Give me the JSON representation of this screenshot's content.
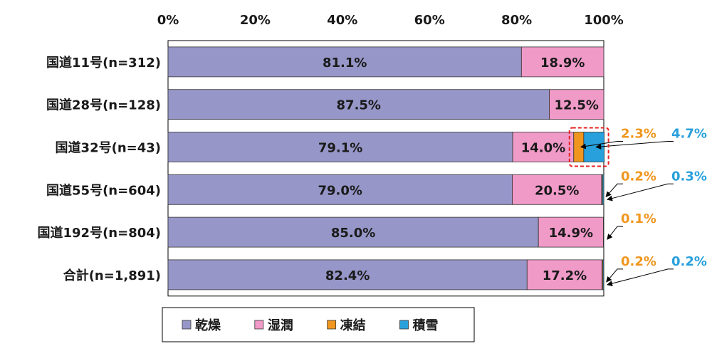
{
  "chart_data": {
    "type": "bar",
    "orientation": "horizontal",
    "stacked": true,
    "normalized": true,
    "x_ticks": [
      "0%",
      "20%",
      "40%",
      "60%",
      "80%",
      "100%"
    ],
    "xlim": [
      0,
      100
    ],
    "categories": [
      "国道11号(n=312)",
      "国道28号(n=128)",
      "国道32号(n=43)",
      "国道55号(n=604)",
      "国道192号(n=804)",
      "合計(n=1,891)"
    ],
    "series": [
      {
        "name": "乾燥",
        "color": "#9696c8",
        "values": [
          81.1,
          87.5,
          79.1,
          79.0,
          85.0,
          82.4
        ],
        "labels": [
          "81.1%",
          "87.5%",
          "79.1%",
          "79.0%",
          "85.0%",
          "82.4%"
        ]
      },
      {
        "name": "湿潤",
        "color": "#f09ac8",
        "values": [
          18.9,
          12.5,
          14.0,
          20.5,
          14.9,
          17.2
        ],
        "labels": [
          "18.9%",
          "12.5%",
          "14.0%",
          "20.5%",
          "14.9%",
          "17.2%"
        ]
      },
      {
        "name": "凍結",
        "color": "#f0961e",
        "values": [
          0,
          0,
          2.3,
          0.2,
          0.1,
          0.2
        ],
        "labels": [
          "",
          "",
          "2.3%",
          "0.2%",
          "0.1%",
          "0.2%"
        ]
      },
      {
        "name": "積雪",
        "color": "#28a0dc",
        "values": [
          0,
          0,
          4.7,
          0.3,
          0,
          0.2
        ],
        "labels": [
          "",
          "",
          "4.7%",
          "0.3%",
          "",
          "0.2%"
        ]
      }
    ],
    "legend_position": "bottom",
    "grid": false
  }
}
